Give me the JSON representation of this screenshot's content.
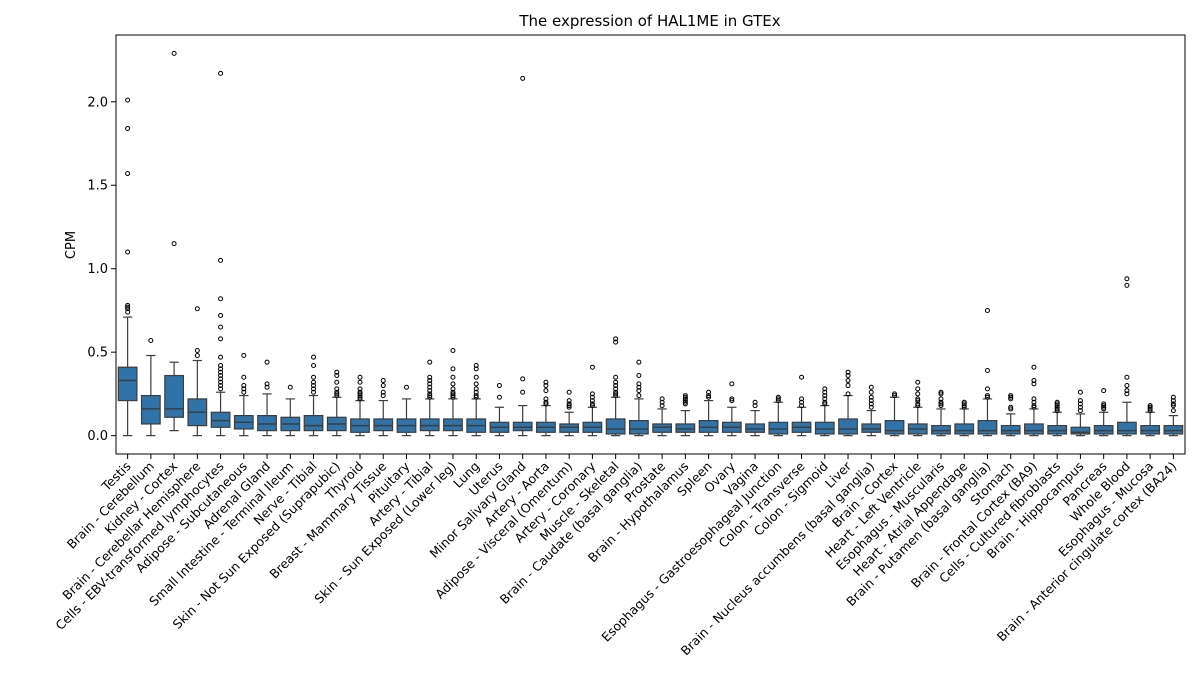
{
  "chart_data": {
    "type": "box",
    "title": "The expression of HAL1ME in GTEx",
    "xlabel": "",
    "ylabel": "CPM",
    "ylim": [
      -0.11,
      2.4
    ],
    "yticks": [
      0.0,
      0.5,
      1.0,
      1.5,
      2.0
    ],
    "ytick_labels": [
      "0.0",
      "0.5",
      "1.0",
      "1.5",
      "2.0"
    ],
    "grid": false,
    "legend": "none",
    "box_color": "#2f73a8",
    "categories": [
      "Testis",
      "Brain - Cerebellum",
      "Kidney - Cortex",
      "Brain - Cerebellar Hemisphere",
      "Cells - EBV-transformed lymphocytes",
      "Adipose - Subcutaneous",
      "Adrenal Gland",
      "Small Intestine - Terminal Ileum",
      "Nerve - Tibial",
      "Skin - Not Sun Exposed (Suprapubic)",
      "Thyroid",
      "Breast - Mammary Tissue",
      "Pituitary",
      "Artery - Tibial",
      "Skin - Sun Exposed (Lower leg)",
      "Lung",
      "Uterus",
      "Minor Salivary Gland",
      "Artery - Aorta",
      "Adipose - Visceral (Omentum)",
      "Artery - Coronary",
      "Muscle - Skeletal",
      "Brain - Caudate (basal ganglia)",
      "Prostate",
      "Brain - Hypothalamus",
      "Spleen",
      "Ovary",
      "Vagina",
      "Esophagus - Gastroesophageal Junction",
      "Colon - Transverse",
      "Colon - Sigmoid",
      "Liver",
      "Brain - Nucleus accumbens (basal ganglia)",
      "Brain - Cortex",
      "Heart - Left Ventricle",
      "Esophagus - Muscularis",
      "Heart - Atrial Appendage",
      "Brain - Putamen (basal ganglia)",
      "Stomach",
      "Brain - Frontal Cortex (BA9)",
      "Cells - Cultured fibroblasts",
      "Brain - Hippocampus",
      "Pancreas",
      "Whole Blood",
      "Esophagus - Mucosa",
      "Brain - Anterior cingulate cortex (BA24)"
    ],
    "boxes": [
      {
        "whisker_low": 0.0,
        "q1": 0.21,
        "median": 0.33,
        "q3": 0.41,
        "whisker_high": 0.71,
        "outliers": [
          2.01,
          1.84,
          1.57,
          1.1,
          0.78,
          0.77,
          0.76,
          0.74
        ]
      },
      {
        "whisker_low": 0.0,
        "q1": 0.07,
        "median": 0.16,
        "q3": 0.24,
        "whisker_high": 0.48,
        "outliers": [
          0.57
        ]
      },
      {
        "whisker_low": 0.03,
        "q1": 0.11,
        "median": 0.16,
        "q3": 0.36,
        "whisker_high": 0.44,
        "outliers": [
          2.29,
          1.15
        ]
      },
      {
        "whisker_low": 0.0,
        "q1": 0.06,
        "median": 0.14,
        "q3": 0.22,
        "whisker_high": 0.45,
        "outliers": [
          0.76,
          0.51,
          0.48
        ]
      },
      {
        "whisker_low": 0.0,
        "q1": 0.05,
        "median": 0.09,
        "q3": 0.14,
        "whisker_high": 0.26,
        "outliers": [
          2.17,
          1.05,
          0.82,
          0.72,
          0.65,
          0.58,
          0.47,
          0.42,
          0.4,
          0.38,
          0.36,
          0.34,
          0.32,
          0.3,
          0.28
        ]
      },
      {
        "whisker_low": 0.0,
        "q1": 0.04,
        "median": 0.08,
        "q3": 0.12,
        "whisker_high": 0.24,
        "outliers": [
          0.48,
          0.35,
          0.3,
          0.28,
          0.26
        ]
      },
      {
        "whisker_low": 0.0,
        "q1": 0.03,
        "median": 0.07,
        "q3": 0.12,
        "whisker_high": 0.25,
        "outliers": [
          0.44,
          0.31,
          0.29
        ]
      },
      {
        "whisker_low": 0.0,
        "q1": 0.03,
        "median": 0.07,
        "q3": 0.11,
        "whisker_high": 0.22,
        "outliers": [
          0.29
        ]
      },
      {
        "whisker_low": 0.0,
        "q1": 0.03,
        "median": 0.06,
        "q3": 0.12,
        "whisker_high": 0.24,
        "outliers": [
          0.47,
          0.42,
          0.35,
          0.32,
          0.3,
          0.28,
          0.26
        ]
      },
      {
        "whisker_low": 0.0,
        "q1": 0.03,
        "median": 0.07,
        "q3": 0.11,
        "whisker_high": 0.23,
        "outliers": [
          0.38,
          0.36,
          0.32,
          0.28,
          0.26,
          0.25,
          0.24
        ]
      },
      {
        "whisker_low": 0.0,
        "q1": 0.02,
        "median": 0.06,
        "q3": 0.1,
        "whisker_high": 0.21,
        "outliers": [
          0.35,
          0.32,
          0.28,
          0.26,
          0.25,
          0.24,
          0.23,
          0.22
        ]
      },
      {
        "whisker_low": 0.0,
        "q1": 0.03,
        "median": 0.06,
        "q3": 0.1,
        "whisker_high": 0.21,
        "outliers": [
          0.33,
          0.3,
          0.26,
          0.24
        ]
      },
      {
        "whisker_low": 0.0,
        "q1": 0.02,
        "median": 0.06,
        "q3": 0.1,
        "whisker_high": 0.22,
        "outliers": [
          0.29
        ]
      },
      {
        "whisker_low": 0.0,
        "q1": 0.03,
        "median": 0.06,
        "q3": 0.1,
        "whisker_high": 0.22,
        "outliers": [
          0.44,
          0.35,
          0.33,
          0.31,
          0.29,
          0.27,
          0.25,
          0.24,
          0.23
        ]
      },
      {
        "whisker_low": 0.0,
        "q1": 0.03,
        "median": 0.06,
        "q3": 0.1,
        "whisker_high": 0.22,
        "outliers": [
          0.51,
          0.4,
          0.35,
          0.31,
          0.28,
          0.26,
          0.25,
          0.24,
          0.23
        ]
      },
      {
        "whisker_low": 0.0,
        "q1": 0.02,
        "median": 0.06,
        "q3": 0.1,
        "whisker_high": 0.22,
        "outliers": [
          0.42,
          0.4,
          0.35,
          0.31,
          0.28,
          0.26,
          0.24,
          0.23
        ]
      },
      {
        "whisker_low": 0.0,
        "q1": 0.02,
        "median": 0.05,
        "q3": 0.08,
        "whisker_high": 0.17,
        "outliers": [
          0.3,
          0.23
        ]
      },
      {
        "whisker_low": 0.0,
        "q1": 0.03,
        "median": 0.05,
        "q3": 0.08,
        "whisker_high": 0.18,
        "outliers": [
          2.14,
          0.34,
          0.26
        ]
      },
      {
        "whisker_low": 0.0,
        "q1": 0.02,
        "median": 0.05,
        "q3": 0.08,
        "whisker_high": 0.18,
        "outliers": [
          0.32,
          0.3,
          0.27,
          0.22,
          0.2,
          0.19
        ]
      },
      {
        "whisker_low": 0.0,
        "q1": 0.02,
        "median": 0.05,
        "q3": 0.07,
        "whisker_high": 0.14,
        "outliers": [
          0.26,
          0.21,
          0.19,
          0.18,
          0.17
        ]
      },
      {
        "whisker_low": 0.0,
        "q1": 0.02,
        "median": 0.05,
        "q3": 0.08,
        "whisker_high": 0.17,
        "outliers": [
          0.41,
          0.25,
          0.23,
          0.21,
          0.19,
          0.18
        ]
      },
      {
        "whisker_low": 0.0,
        "q1": 0.01,
        "median": 0.04,
        "q3": 0.1,
        "whisker_high": 0.23,
        "outliers": [
          0.58,
          0.56,
          0.35,
          0.32,
          0.3,
          0.28,
          0.26,
          0.25,
          0.24
        ]
      },
      {
        "whisker_low": 0.0,
        "q1": 0.01,
        "median": 0.04,
        "q3": 0.09,
        "whisker_high": 0.22,
        "outliers": [
          0.44,
          0.36,
          0.31,
          0.29,
          0.27,
          0.24
        ]
      },
      {
        "whisker_low": 0.0,
        "q1": 0.02,
        "median": 0.05,
        "q3": 0.07,
        "whisker_high": 0.16,
        "outliers": [
          0.22,
          0.2,
          0.18
        ]
      },
      {
        "whisker_low": 0.0,
        "q1": 0.02,
        "median": 0.04,
        "q3": 0.07,
        "whisker_high": 0.15,
        "outliers": [
          0.24,
          0.23,
          0.22,
          0.21,
          0.2,
          0.19
        ]
      },
      {
        "whisker_low": 0.0,
        "q1": 0.02,
        "median": 0.05,
        "q3": 0.09,
        "whisker_high": 0.21,
        "outliers": [
          0.26,
          0.24,
          0.23
        ]
      },
      {
        "whisker_low": 0.0,
        "q1": 0.02,
        "median": 0.05,
        "q3": 0.08,
        "whisker_high": 0.17,
        "outliers": [
          0.31,
          0.22,
          0.21
        ]
      },
      {
        "whisker_low": 0.0,
        "q1": 0.02,
        "median": 0.04,
        "q3": 0.07,
        "whisker_high": 0.15,
        "outliers": [
          0.2,
          0.18
        ]
      },
      {
        "whisker_low": 0.0,
        "q1": 0.01,
        "median": 0.04,
        "q3": 0.08,
        "whisker_high": 0.2,
        "outliers": [
          0.23,
          0.22,
          0.21
        ]
      },
      {
        "whisker_low": 0.0,
        "q1": 0.02,
        "median": 0.05,
        "q3": 0.08,
        "whisker_high": 0.17,
        "outliers": [
          0.35,
          0.22,
          0.2,
          0.18
        ]
      },
      {
        "whisker_low": 0.0,
        "q1": 0.01,
        "median": 0.04,
        "q3": 0.08,
        "whisker_high": 0.18,
        "outliers": [
          0.28,
          0.26,
          0.24,
          0.22,
          0.2,
          0.19
        ]
      },
      {
        "whisker_low": 0.0,
        "q1": 0.01,
        "median": 0.04,
        "q3": 0.1,
        "whisker_high": 0.24,
        "outliers": [
          0.38,
          0.36,
          0.33,
          0.3,
          0.25
        ]
      },
      {
        "whisker_low": 0.0,
        "q1": 0.02,
        "median": 0.04,
        "q3": 0.07,
        "whisker_high": 0.15,
        "outliers": [
          0.29,
          0.26,
          0.23,
          0.21,
          0.19,
          0.17
        ]
      },
      {
        "whisker_low": 0.0,
        "q1": 0.01,
        "median": 0.03,
        "q3": 0.09,
        "whisker_high": 0.23,
        "outliers": [
          0.25,
          0.24
        ]
      },
      {
        "whisker_low": 0.0,
        "q1": 0.01,
        "median": 0.04,
        "q3": 0.07,
        "whisker_high": 0.17,
        "outliers": [
          0.32,
          0.28,
          0.25,
          0.22,
          0.21,
          0.19,
          0.18
        ]
      },
      {
        "whisker_low": 0.0,
        "q1": 0.01,
        "median": 0.03,
        "q3": 0.06,
        "whisker_high": 0.16,
        "outliers": [
          0.26,
          0.25,
          0.22,
          0.2,
          0.19,
          0.18
        ]
      },
      {
        "whisker_low": 0.0,
        "q1": 0.01,
        "median": 0.03,
        "q3": 0.07,
        "whisker_high": 0.16,
        "outliers": [
          0.2,
          0.19,
          0.18,
          0.17
        ]
      },
      {
        "whisker_low": 0.0,
        "q1": 0.01,
        "median": 0.03,
        "q3": 0.09,
        "whisker_high": 0.22,
        "outliers": [
          0.75,
          0.39,
          0.28,
          0.24,
          0.23
        ]
      },
      {
        "whisker_low": 0.0,
        "q1": 0.01,
        "median": 0.03,
        "q3": 0.06,
        "whisker_high": 0.13,
        "outliers": [
          0.24,
          0.23,
          0.22,
          0.17,
          0.16
        ]
      },
      {
        "whisker_low": 0.0,
        "q1": 0.01,
        "median": 0.03,
        "q3": 0.07,
        "whisker_high": 0.16,
        "outliers": [
          0.41,
          0.33,
          0.31,
          0.22,
          0.2,
          0.18,
          0.17
        ]
      },
      {
        "whisker_low": 0.0,
        "q1": 0.01,
        "median": 0.03,
        "q3": 0.06,
        "whisker_high": 0.14,
        "outliers": [
          0.2,
          0.19,
          0.18,
          0.17,
          0.16,
          0.15
        ]
      },
      {
        "whisker_low": 0.0,
        "q1": 0.01,
        "median": 0.02,
        "q3": 0.05,
        "whisker_high": 0.13,
        "outliers": [
          0.26,
          0.21,
          0.19,
          0.17,
          0.15
        ]
      },
      {
        "whisker_low": 0.0,
        "q1": 0.01,
        "median": 0.03,
        "q3": 0.06,
        "whisker_high": 0.14,
        "outliers": [
          0.27,
          0.19,
          0.18,
          0.17,
          0.16
        ]
      },
      {
        "whisker_low": 0.0,
        "q1": 0.01,
        "median": 0.03,
        "q3": 0.08,
        "whisker_high": 0.2,
        "outliers": [
          0.94,
          0.9,
          0.35,
          0.3,
          0.27,
          0.25
        ]
      },
      {
        "whisker_low": 0.0,
        "q1": 0.01,
        "median": 0.03,
        "q3": 0.06,
        "whisker_high": 0.14,
        "outliers": [
          0.18,
          0.17,
          0.16,
          0.15
        ]
      },
      {
        "whisker_low": 0.0,
        "q1": 0.01,
        "median": 0.03,
        "q3": 0.06,
        "whisker_high": 0.12,
        "outliers": [
          0.23,
          0.21,
          0.19,
          0.18,
          0.15
        ]
      }
    ]
  }
}
